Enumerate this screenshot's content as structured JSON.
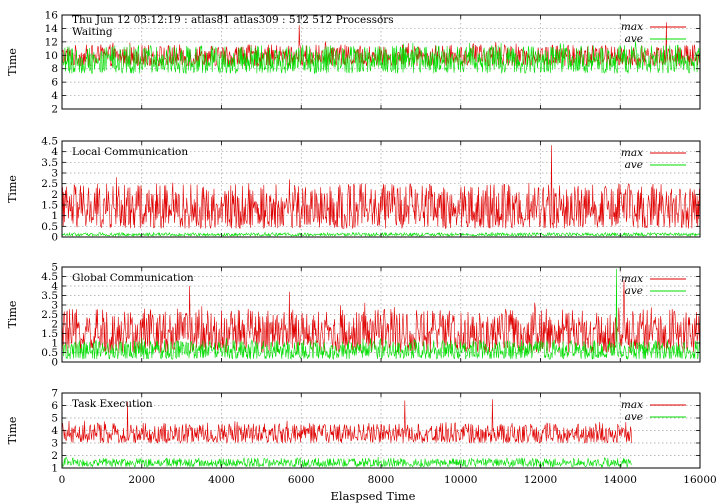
{
  "header": {
    "title": "Thu Jun 12 03:12:19 : atlas81 atlas309 : 512 512 Processors"
  },
  "xlabel": "Elaspsed Time",
  "colors": {
    "max": "#e00000",
    "ave": "#00dd00",
    "grid": "#a0a0a0",
    "frame": "#000000"
  },
  "chart_data": [
    {
      "type": "line",
      "title": "Waiting",
      "ylabel": "Time",
      "ylim": [
        2,
        16
      ],
      "yticks": [
        2,
        4,
        6,
        8,
        10,
        12,
        14,
        16
      ],
      "xlim": [
        0,
        16000
      ],
      "grid": true,
      "legend": "top-right",
      "series": [
        {
          "name": "max",
          "x_end": 16000,
          "base": 8.4,
          "spread": 3.2,
          "peaks": [
            [
              5950,
              14.5
            ],
            [
              15150,
              14.9
            ]
          ]
        },
        {
          "name": "ave",
          "x_end": 16000,
          "base": 7.3,
          "spread": 4.2,
          "peaks": [
            [
              1700,
              11.6
            ],
            [
              12500,
              11.8
            ]
          ]
        }
      ]
    },
    {
      "type": "line",
      "title": "Local Communication",
      "ylabel": "Time",
      "ylim": [
        0,
        4.5
      ],
      "yticks": [
        0,
        0.5,
        1,
        1.5,
        2,
        2.5,
        3,
        3.5,
        4,
        4.5
      ],
      "xlim": [
        0,
        16000
      ],
      "grid": true,
      "legend": "top-right",
      "series": [
        {
          "name": "max",
          "x_end": 16000,
          "base": 0.4,
          "spread": 2.1,
          "peaks": [
            [
              12280,
              4.3
            ],
            [
              5700,
              2.7
            ]
          ]
        },
        {
          "name": "ave",
          "x_end": 16000,
          "base": 0.05,
          "spread": 0.15,
          "peaks": []
        }
      ]
    },
    {
      "type": "line",
      "title": "Global Communication",
      "ylabel": "Time",
      "ylim": [
        0,
        5
      ],
      "yticks": [
        0,
        0.5,
        1,
        1.5,
        2,
        2.5,
        3,
        3.5,
        4,
        4.5,
        5
      ],
      "xlim": [
        0,
        16000
      ],
      "grid": true,
      "legend": "top-right",
      "series": [
        {
          "name": "max",
          "x_end": 16000,
          "base": 0.5,
          "spread": 2.3,
          "peaks": [
            [
              14100,
              4.3
            ],
            [
              3200,
              4.0
            ],
            [
              5700,
              3.7
            ]
          ]
        },
        {
          "name": "ave",
          "x_end": 16000,
          "base": 0.15,
          "spread": 1.0,
          "peaks": [
            [
              13900,
              4.9
            ]
          ]
        }
      ]
    },
    {
      "type": "line",
      "title": "Task Execution",
      "ylabel": "Time",
      "ylim": [
        1,
        7
      ],
      "yticks": [
        1,
        2,
        3,
        4,
        5,
        6,
        7
      ],
      "xlim": [
        0,
        16000
      ],
      "xticks": [
        0,
        2000,
        4000,
        6000,
        8000,
        10000,
        12000,
        14000,
        16000
      ],
      "grid": true,
      "legend": "top-right",
      "series": [
        {
          "name": "max",
          "x_end": 14300,
          "base": 3.0,
          "spread": 1.6,
          "peaks": [
            [
              10800,
              6.5
            ],
            [
              1650,
              6.3
            ],
            [
              8600,
              6.4
            ]
          ]
        },
        {
          "name": "ave",
          "x_end": 14300,
          "base": 1.1,
          "spread": 0.7,
          "peaks": []
        }
      ]
    }
  ]
}
